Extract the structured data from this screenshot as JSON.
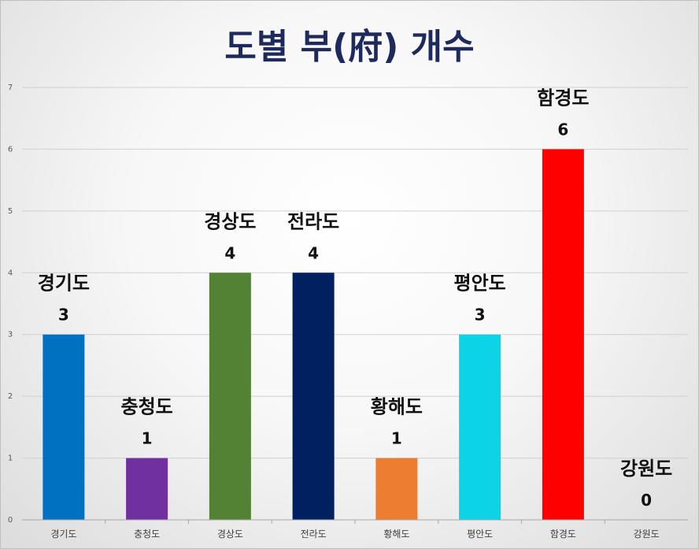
{
  "chart_data": {
    "type": "bar",
    "title": "도별 부(府) 개수",
    "categories": [
      "경기도",
      "충청도",
      "경상도",
      "전라도",
      "황해도",
      "평안도",
      "함경도",
      "강원도"
    ],
    "values": [
      3,
      1,
      4,
      4,
      1,
      3,
      6,
      0
    ],
    "colors": [
      "#0070C0",
      "#7030A0",
      "#548235",
      "#002060",
      "#ED7D31",
      "#0DD3E6",
      "#FF0000",
      "#7F7F7F"
    ],
    "ylim": [
      0,
      7
    ],
    "yticks": [
      "0",
      "1",
      "2",
      "3",
      "4",
      "5",
      "6",
      "7"
    ],
    "xlabel": "",
    "ylabel": "",
    "grid": true,
    "data_labels": true
  }
}
